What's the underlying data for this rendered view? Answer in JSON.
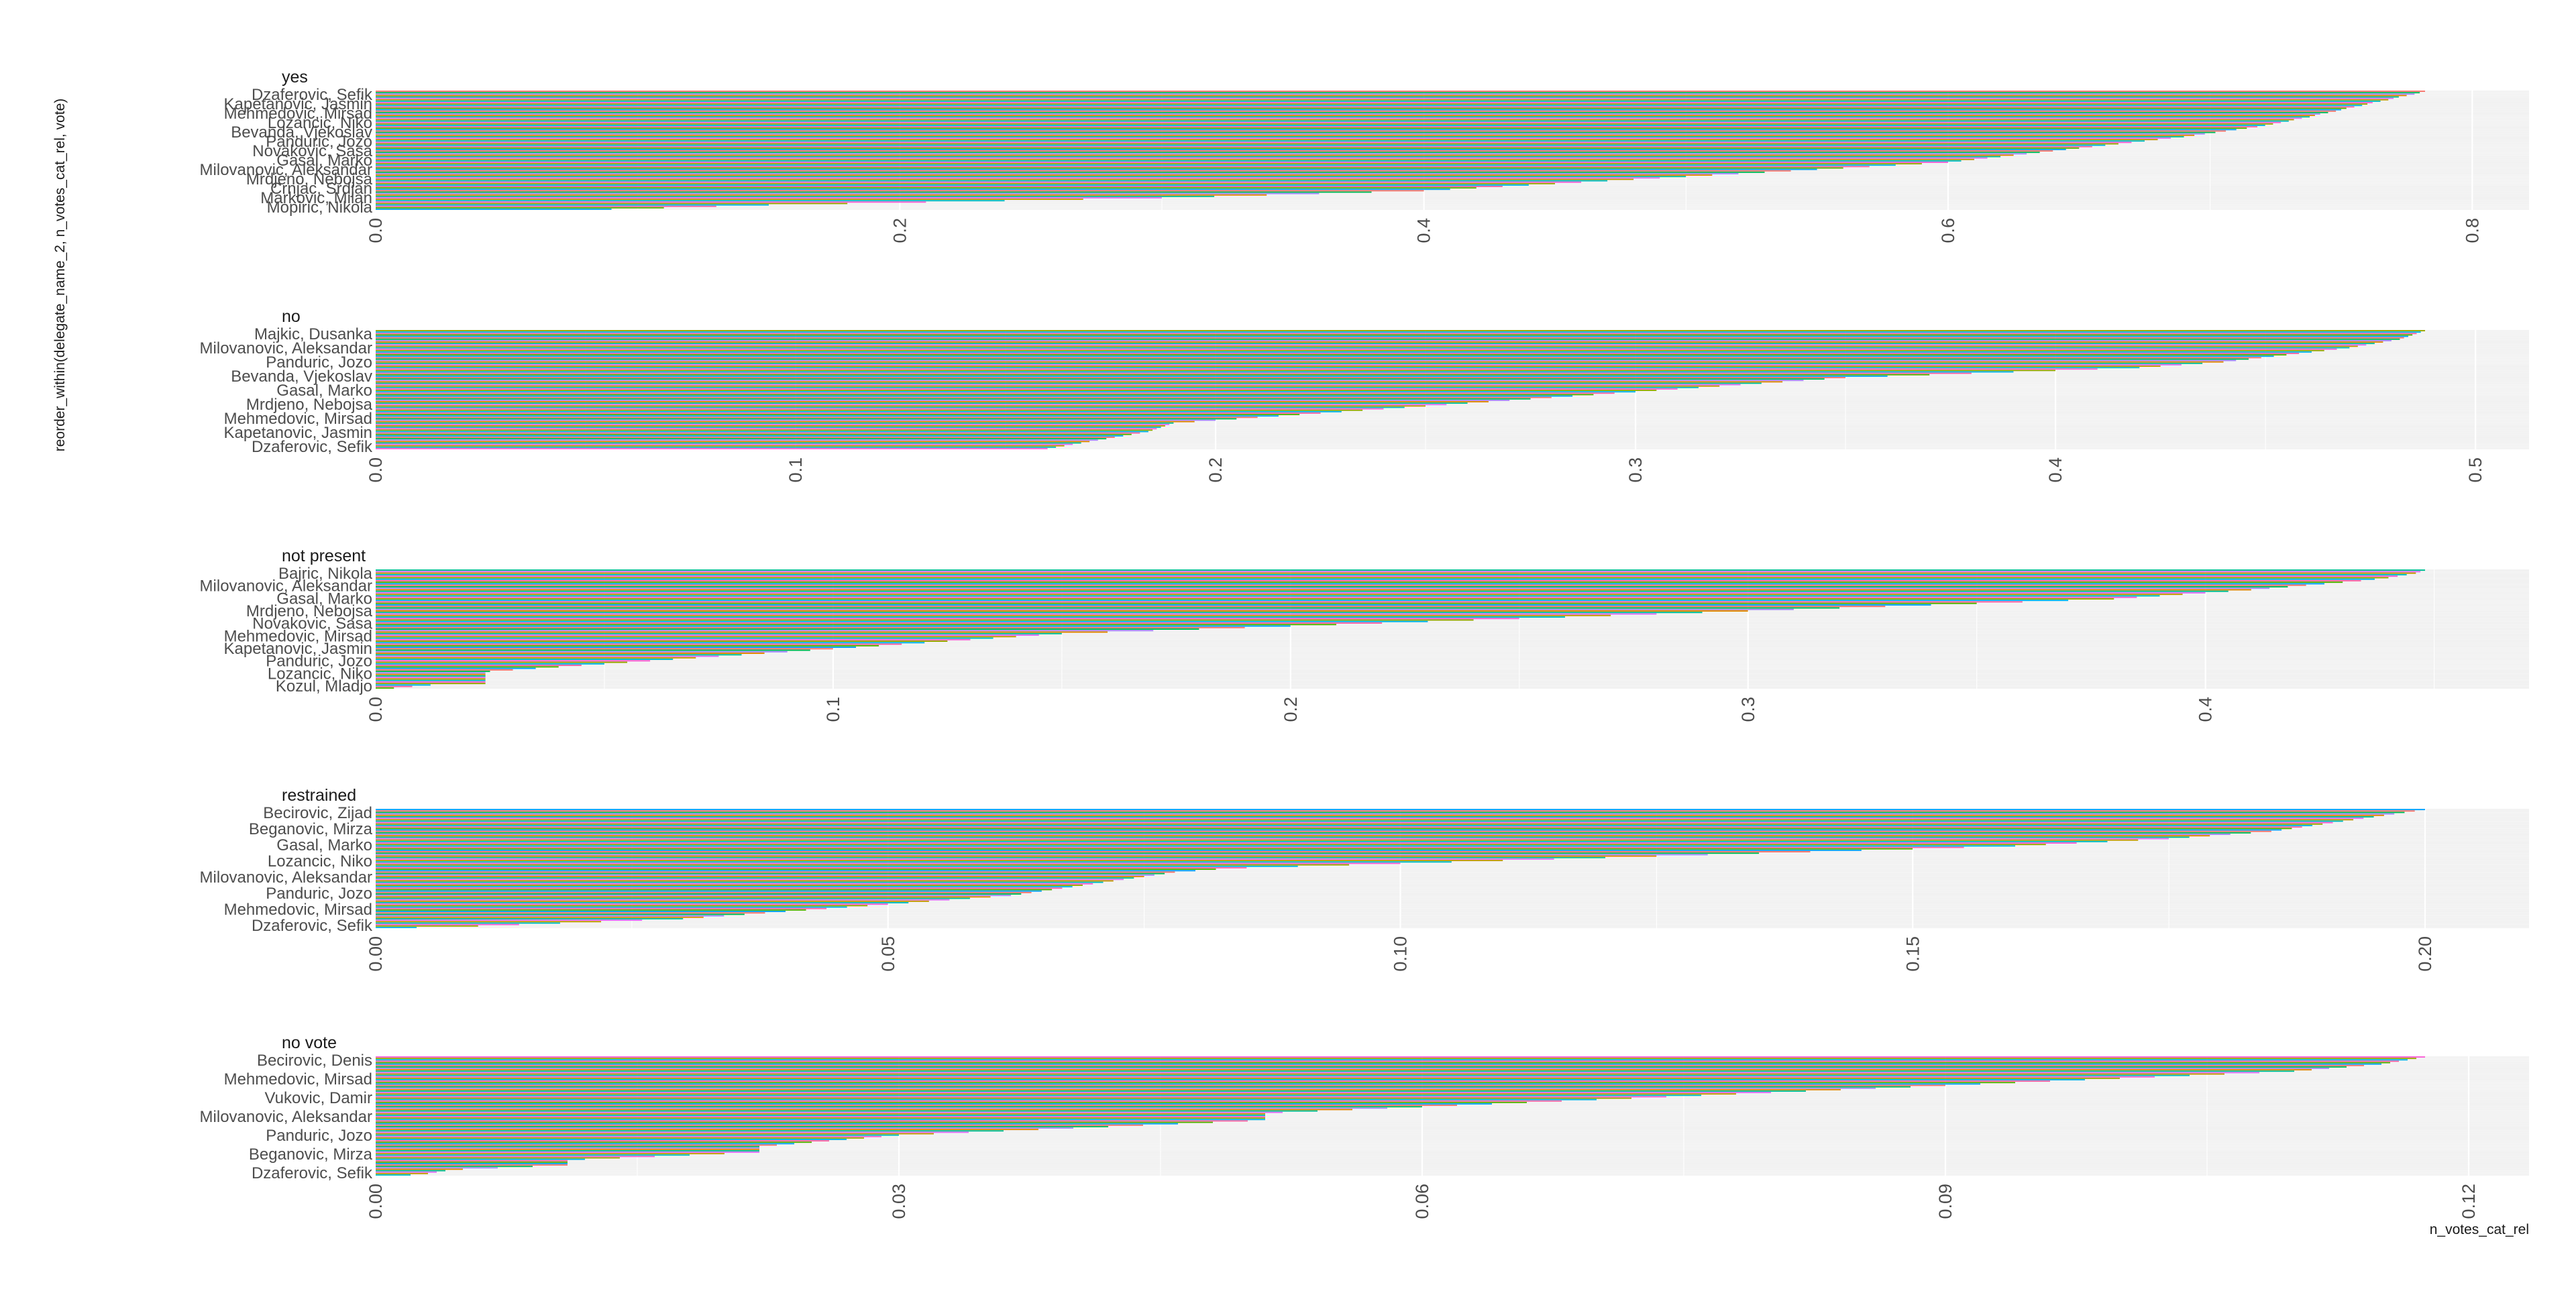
{
  "chart_data": {
    "type": "bar",
    "orientation": "horizontal",
    "facet_layout": "stacked vertically, free scales",
    "xlabel": "n_votes_cat_rel",
    "ylabel": "reorder_within(delegate_name_2, n_votes_cat_rel, vote)",
    "grid": true,
    "legend": "none",
    "palette": [
      "#F8766D",
      "#E38900",
      "#C49A00",
      "#99A800",
      "#53B400",
      "#00BC56",
      "#00C094",
      "#00BFC4",
      "#00B6EB",
      "#06A4FF",
      "#A58AFF",
      "#DF70F8",
      "#FB61D7",
      "#FF66A8"
    ],
    "colors": {
      "panel_bg": "#ebebeb",
      "grid": "#ffffff",
      "text": "#4d4d4d"
    },
    "panels": [
      {
        "title": "yes",
        "xlim": [
          0,
          0.82
        ],
        "ticks": [
          "0.0",
          "0.2",
          "0.4",
          "0.6",
          "0.8"
        ],
        "tick_values": [
          0,
          0.2,
          0.4,
          0.6,
          0.8
        ],
        "labels": [
          "Dzaferovic, Sefik",
          "Kapetanovic, Jasmin",
          "Mehmedovic, Mirsad",
          "Lozancic, Niko",
          "Bevanda, Vjekoslav",
          "Panduric, Jozo",
          "Novakovic, Sasa",
          "Gasal, Marko",
          "Milovanovic, Aleksandar",
          "Mrdjeno, Nebojsa",
          "Crnjac, Srdjan",
          "Markovic, Milan",
          "Mopiric, Nikola"
        ],
        "values": [
          0.782,
          0.78,
          0.778,
          0.775,
          0.772,
          0.77,
          0.768,
          0.765,
          0.762,
          0.76,
          0.758,
          0.755,
          0.752,
          0.75,
          0.748,
          0.745,
          0.742,
          0.74,
          0.738,
          0.735,
          0.732,
          0.73,
          0.727,
          0.724,
          0.721,
          0.718,
          0.714,
          0.71,
          0.706,
          0.702,
          0.698,
          0.694,
          0.69,
          0.685,
          0.68,
          0.675,
          0.67,
          0.665,
          0.66,
          0.655,
          0.65,
          0.645,
          0.64,
          0.635,
          0.63,
          0.625,
          0.62,
          0.615,
          0.61,
          0.605,
          0.6,
          0.59,
          0.58,
          0.57,
          0.56,
          0.55,
          0.54,
          0.53,
          0.52,
          0.51,
          0.5,
          0.49,
          0.48,
          0.47,
          0.46,
          0.45,
          0.44,
          0.43,
          0.42,
          0.41,
          0.4,
          0.38,
          0.36,
          0.34,
          0.32,
          0.3,
          0.27,
          0.24,
          0.21,
          0.18,
          0.15,
          0.13,
          0.11,
          0.09
        ]
      },
      {
        "title": "no",
        "xlim": [
          0,
          0.51
        ],
        "ticks": [
          "0.0",
          "0.1",
          "0.2",
          "0.3",
          "0.4",
          "0.5"
        ],
        "tick_values": [
          0,
          0.1,
          0.2,
          0.3,
          0.4,
          0.5
        ],
        "labels": [
          "Majkic, Dusanka",
          "Milovanovic, Aleksandar",
          "Panduric, Jozo",
          "Bevanda, Vjekoslav",
          "Gasal, Marko",
          "Mrdjeno, Nebojsa",
          "Mehmedovic, Mirsad",
          "Kapetanovic, Jasmin",
          "Dzaferovic, Sefik"
        ],
        "values": [
          0.488,
          0.487,
          0.486,
          0.485,
          0.484,
          0.483,
          0.482,
          0.48,
          0.478,
          0.476,
          0.474,
          0.472,
          0.47,
          0.467,
          0.464,
          0.461,
          0.458,
          0.455,
          0.452,
          0.449,
          0.446,
          0.443,
          0.44,
          0.435,
          0.43,
          0.425,
          0.42,
          0.41,
          0.4,
          0.39,
          0.38,
          0.37,
          0.36,
          0.35,
          0.345,
          0.34,
          0.335,
          0.33,
          0.325,
          0.32,
          0.315,
          0.31,
          0.305,
          0.3,
          0.295,
          0.29,
          0.285,
          0.28,
          0.275,
          0.27,
          0.265,
          0.26,
          0.255,
          0.25,
          0.245,
          0.24,
          0.235,
          0.23,
          0.225,
          0.22,
          0.215,
          0.21,
          0.205,
          0.2,
          0.195,
          0.19,
          0.189,
          0.188,
          0.187,
          0.186,
          0.185,
          0.184,
          0.182,
          0.18,
          0.178,
          0.176,
          0.174,
          0.172,
          0.17,
          0.168,
          0.166,
          0.164,
          0.162,
          0.16
        ]
      },
      {
        "title": "not present",
        "xlim": [
          0,
          0.47
        ],
        "ticks": [
          "0.0",
          "0.1",
          "0.2",
          "0.3",
          "0.4"
        ],
        "tick_values": [
          0,
          0.1,
          0.2,
          0.3,
          0.4
        ],
        "labels": [
          "Bajric, Nikola",
          "Milovanovic, Aleksandar",
          "Gasal, Marko",
          "Mrdjeno, Nebojsa",
          "Novakovic, Sasa",
          "Mehmedovic, Mirsad",
          "Kapetanovic, Jasmin",
          "Panduric, Jozo",
          "Lozancic, Niko",
          "Kozul, Mladjo"
        ],
        "values": [
          0.448,
          0.447,
          0.446,
          0.444,
          0.442,
          0.44,
          0.437,
          0.434,
          0.43,
          0.426,
          0.422,
          0.418,
          0.414,
          0.41,
          0.405,
          0.4,
          0.395,
          0.39,
          0.385,
          0.38,
          0.37,
          0.36,
          0.35,
          0.34,
          0.33,
          0.32,
          0.31,
          0.3,
          0.29,
          0.28,
          0.27,
          0.26,
          0.25,
          0.24,
          0.23,
          0.22,
          0.21,
          0.2,
          0.19,
          0.18,
          0.17,
          0.16,
          0.15,
          0.145,
          0.14,
          0.135,
          0.13,
          0.125,
          0.12,
          0.115,
          0.11,
          0.105,
          0.1,
          0.095,
          0.09,
          0.085,
          0.08,
          0.075,
          0.07,
          0.065,
          0.06,
          0.055,
          0.05,
          0.045,
          0.04,
          0.035,
          0.03,
          0.025,
          0.024,
          0.024,
          0.024,
          0.024,
          0.024,
          0.024,
          0.024,
          0.024,
          0.012,
          0.008,
          0.004
        ]
      },
      {
        "title": "restrained",
        "xlim": [
          0,
          0.21
        ],
        "ticks": [
          "0.00",
          "0.05",
          "0.10",
          "0.15",
          "0.20"
        ],
        "tick_values": [
          0,
          0.05,
          0.1,
          0.15,
          0.2
        ],
        "labels": [
          "Becirovic, Zijad",
          "Beganovic, Mirza",
          "Gasal, Marko",
          "Lozancic, Niko",
          "Milovanovic, Aleksandar",
          "Panduric, Jozo",
          "Mehmedovic, Mirsad",
          "Dzaferovic, Sefik"
        ],
        "values": [
          0.2,
          0.199,
          0.198,
          0.197,
          0.196,
          0.195,
          0.194,
          0.193,
          0.192,
          0.191,
          0.19,
          0.189,
          0.188,
          0.187,
          0.186,
          0.185,
          0.183,
          0.181,
          0.179,
          0.177,
          0.175,
          0.172,
          0.169,
          0.166,
          0.163,
          0.16,
          0.155,
          0.15,
          0.145,
          0.14,
          0.135,
          0.13,
          0.125,
          0.12,
          0.115,
          0.11,
          0.105,
          0.1,
          0.095,
          0.09,
          0.085,
          0.082,
          0.08,
          0.078,
          0.077,
          0.076,
          0.075,
          0.074,
          0.073,
          0.072,
          0.071,
          0.07,
          0.069,
          0.068,
          0.067,
          0.066,
          0.065,
          0.064,
          0.063,
          0.062,
          0.06,
          0.058,
          0.056,
          0.054,
          0.052,
          0.05,
          0.048,
          0.046,
          0.044,
          0.042,
          0.04,
          0.038,
          0.036,
          0.034,
          0.032,
          0.03,
          0.026,
          0.022,
          0.018,
          0.014,
          0.01,
          0.004
        ]
      },
      {
        "title": "no vote",
        "xlim": [
          0,
          0.123
        ],
        "ticks": [
          "0.00",
          "0.03",
          "0.06",
          "0.09",
          "0.12"
        ],
        "tick_values": [
          0,
          0.03,
          0.06,
          0.09,
          0.12
        ],
        "labels": [
          "Becirovic, Denis",
          "Mehmedovic, Mirsad",
          "Vukovic, Damir",
          "Milovanovic, Aleksandar",
          "Panduric, Jozo",
          "Beganovic, Mirza",
          "Dzaferovic, Sefik"
        ],
        "values": [
          0.1175,
          0.117,
          0.1165,
          0.116,
          0.1155,
          0.115,
          0.114,
          0.113,
          0.112,
          0.111,
          0.11,
          0.108,
          0.106,
          0.104,
          0.102,
          0.1,
          0.098,
          0.096,
          0.094,
          0.092,
          0.09,
          0.088,
          0.086,
          0.084,
          0.082,
          0.08,
          0.078,
          0.076,
          0.074,
          0.072,
          0.07,
          0.068,
          0.066,
          0.064,
          0.062,
          0.06,
          0.058,
          0.056,
          0.054,
          0.052,
          0.051,
          0.051,
          0.051,
          0.051,
          0.051,
          0.05,
          0.048,
          0.046,
          0.044,
          0.042,
          0.04,
          0.038,
          0.036,
          0.034,
          0.032,
          0.03,
          0.029,
          0.028,
          0.027,
          0.026,
          0.025,
          0.024,
          0.023,
          0.022,
          0.022,
          0.022,
          0.022,
          0.022,
          0.02,
          0.018,
          0.016,
          0.014,
          0.012,
          0.011,
          0.011,
          0.011,
          0.011,
          0.009,
          0.007,
          0.005,
          0.004,
          0.0035,
          0.003,
          0.002
        ]
      }
    ]
  }
}
